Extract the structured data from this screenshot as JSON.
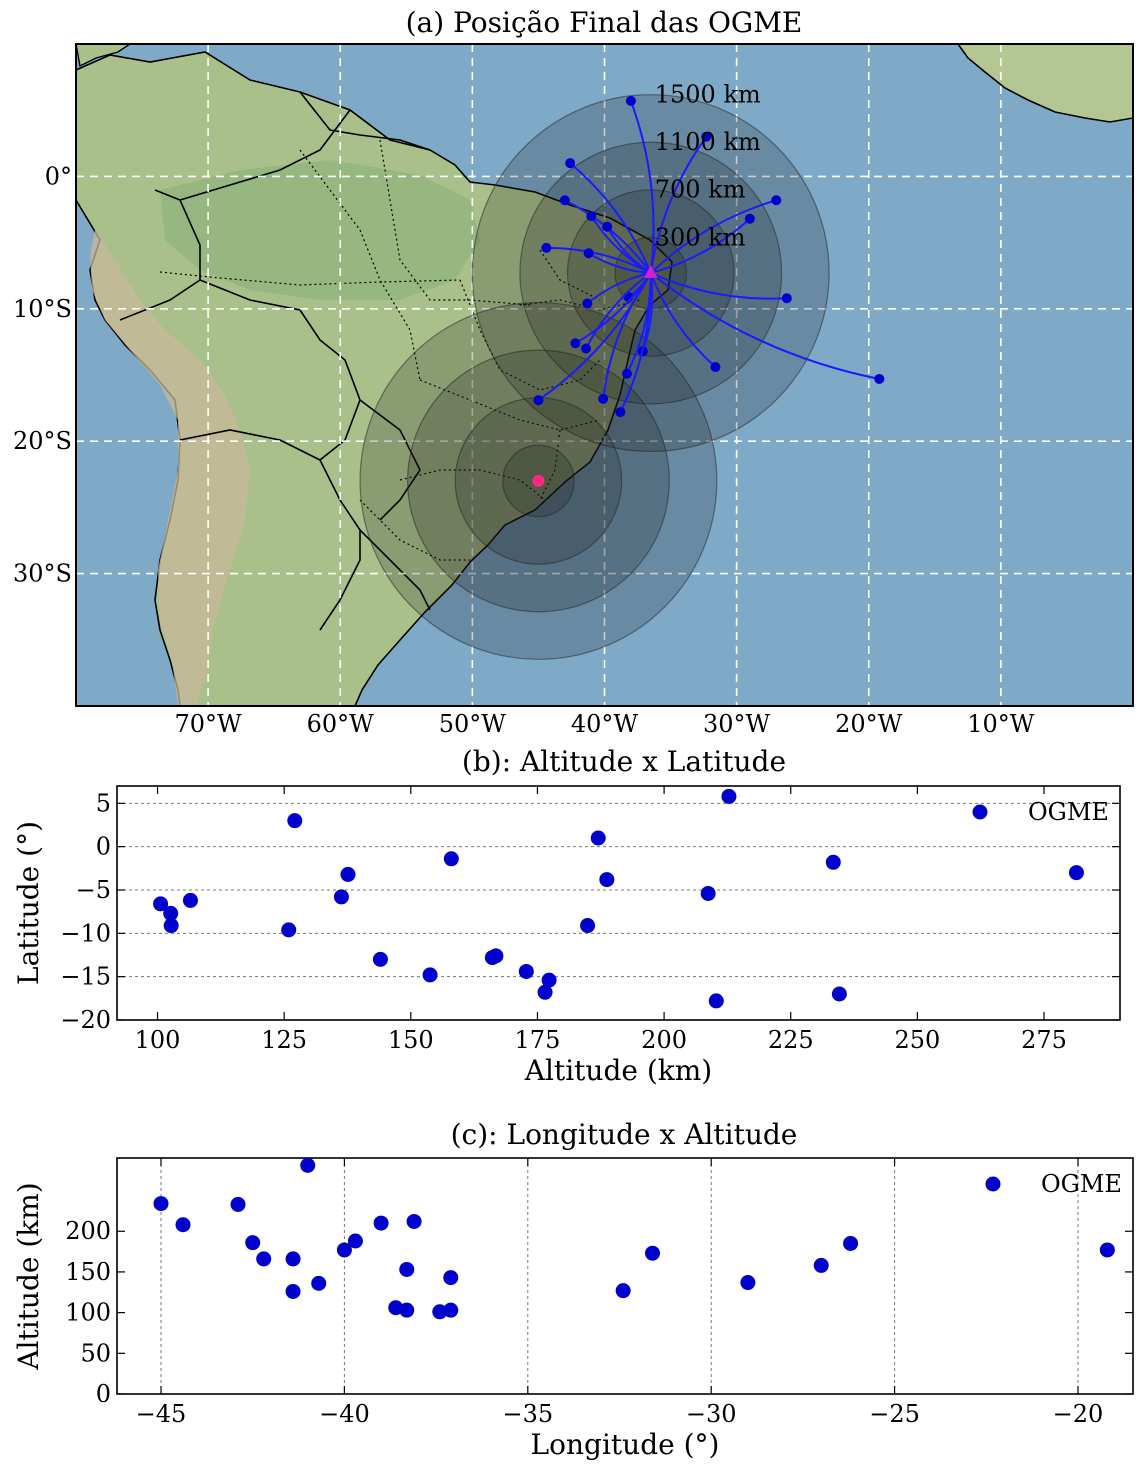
{
  "chart_data": [
    {
      "type": "map",
      "title": "(a) Posição Final das OGME",
      "lon_range": [
        -80,
        0
      ],
      "lat_range": [
        -40,
        10
      ],
      "lon_ticks": [
        -70,
        -60,
        -50,
        -40,
        -30,
        -20,
        -10
      ],
      "lon_tick_labels": [
        "70°W",
        "60°W",
        "50°W",
        "40°W",
        "30°W",
        "20°W",
        "10°W"
      ],
      "lat_ticks": [
        0,
        -10,
        -20,
        -30
      ],
      "lat_tick_labels": [
        "0°",
        "10°S",
        "20°S",
        "30°S"
      ],
      "grid": true,
      "ring_labels": [
        "1500 km",
        "1100 km",
        "700 km",
        "300 km"
      ],
      "ring_radii_deg": [
        13.5,
        9.9,
        6.3,
        2.7
      ],
      "ring_centers": [
        {
          "name": "launch",
          "lon": -36.5,
          "lat": -7.3
        },
        {
          "name": "station",
          "lon": -45.0,
          "lat": -23.0
        }
      ],
      "launch_point": {
        "lon": -36.5,
        "lat": -7.3,
        "color": "#d020d0"
      },
      "station_point": {
        "lon": -45.0,
        "lat": -23.0,
        "color": "#ff2a7f"
      },
      "final_positions": [
        {
          "lon": -38.0,
          "lat": 5.7
        },
        {
          "lon": -32.3,
          "lat": 3.0
        },
        {
          "lon": -42.6,
          "lat": 1.0
        },
        {
          "lon": -27.0,
          "lat": -1.8
        },
        {
          "lon": -43.0,
          "lat": -1.8
        },
        {
          "lon": -41.0,
          "lat": -3.0
        },
        {
          "lon": -29.0,
          "lat": -3.2
        },
        {
          "lon": -39.8,
          "lat": -3.8
        },
        {
          "lon": -44.4,
          "lat": -5.4
        },
        {
          "lon": -41.2,
          "lat": -5.8
        },
        {
          "lon": -26.2,
          "lat": -9.2
        },
        {
          "lon": -38.2,
          "lat": -9.1
        },
        {
          "lon": -41.3,
          "lat": -9.6
        },
        {
          "lon": -42.2,
          "lat": -12.6
        },
        {
          "lon": -41.4,
          "lat": -13.0
        },
        {
          "lon": -37.1,
          "lat": -13.2
        },
        {
          "lon": -31.6,
          "lat": -14.4
        },
        {
          "lon": -38.3,
          "lat": -14.9
        },
        {
          "lon": -19.2,
          "lat": -15.3
        },
        {
          "lon": -45.0,
          "lat": -16.9
        },
        {
          "lon": -40.1,
          "lat": -16.8
        },
        {
          "lon": -38.8,
          "lat": -17.8
        }
      ]
    },
    {
      "type": "scatter",
      "title": "(b): Altitude x Latitude",
      "xlabel": "Altitude (km)",
      "ylabel": "Latitude (°)",
      "xlim": [
        92,
        290
      ],
      "ylim": [
        -20,
        7
      ],
      "xticks": [
        100,
        125,
        150,
        175,
        200,
        225,
        250,
        275
      ],
      "yticks": [
        5,
        0,
        -5,
        -10,
        -15,
        -20
      ],
      "legend": "top-right",
      "series": [
        {
          "name": "OGME",
          "color": "#0000cc",
          "points": [
            [
              100.6,
              -6.6
            ],
            [
              102.6,
              -7.7
            ],
            [
              102.7,
              -9.1
            ],
            [
              106.5,
              -6.2
            ],
            [
              125.9,
              -9.6
            ],
            [
              127.1,
              3.0
            ],
            [
              136.3,
              -5.8
            ],
            [
              137.6,
              -3.2
            ],
            [
              144.0,
              -13.0
            ],
            [
              153.8,
              -14.8
            ],
            [
              158.0,
              -1.4
            ],
            [
              166.1,
              -12.8
            ],
            [
              166.8,
              -12.6
            ],
            [
              172.8,
              -14.4
            ],
            [
              176.5,
              -16.8
            ],
            [
              177.3,
              -15.4
            ],
            [
              184.9,
              -9.1
            ],
            [
              187.0,
              1.0
            ],
            [
              188.7,
              -3.8
            ],
            [
              208.7,
              -5.4
            ],
            [
              210.3,
              -17.8
            ],
            [
              212.8,
              5.8
            ],
            [
              233.4,
              -1.8
            ],
            [
              234.6,
              -17.0
            ],
            [
              281.4,
              -3.0
            ]
          ]
        }
      ]
    },
    {
      "type": "scatter",
      "title": "(c): Longitude x Altitude",
      "xlabel": "Longitude (°)",
      "ylabel": "Altitude (km)",
      "xlim": [
        -46.2,
        -18.5
      ],
      "ylim": [
        0,
        290
      ],
      "xticks": [
        -45,
        -40,
        -35,
        -30,
        -25,
        -20
      ],
      "yticks": [
        0,
        50,
        100,
        150,
        200
      ],
      "legend": "top-right",
      "series": [
        {
          "name": "OGME",
          "color": "#0000cc",
          "points": [
            [
              -45.0,
              234
            ],
            [
              -44.4,
              208
            ],
            [
              -42.9,
              233
            ],
            [
              -42.5,
              186
            ],
            [
              -42.2,
              166
            ],
            [
              -41.4,
              166
            ],
            [
              -41.4,
              126
            ],
            [
              -41.0,
              281
            ],
            [
              -40.7,
              136
            ],
            [
              -40.0,
              177
            ],
            [
              -39.7,
              188
            ],
            [
              -39.0,
              210
            ],
            [
              -38.6,
              106
            ],
            [
              -38.3,
              153
            ],
            [
              -38.3,
              103
            ],
            [
              -38.1,
              212
            ],
            [
              -37.4,
              101
            ],
            [
              -37.1,
              143
            ],
            [
              -37.1,
              103
            ],
            [
              -32.4,
              127
            ],
            [
              -31.6,
              173
            ],
            [
              -29.0,
              137
            ],
            [
              -27.0,
              158
            ],
            [
              -26.2,
              185
            ],
            [
              -19.2,
              177
            ]
          ]
        }
      ]
    }
  ]
}
